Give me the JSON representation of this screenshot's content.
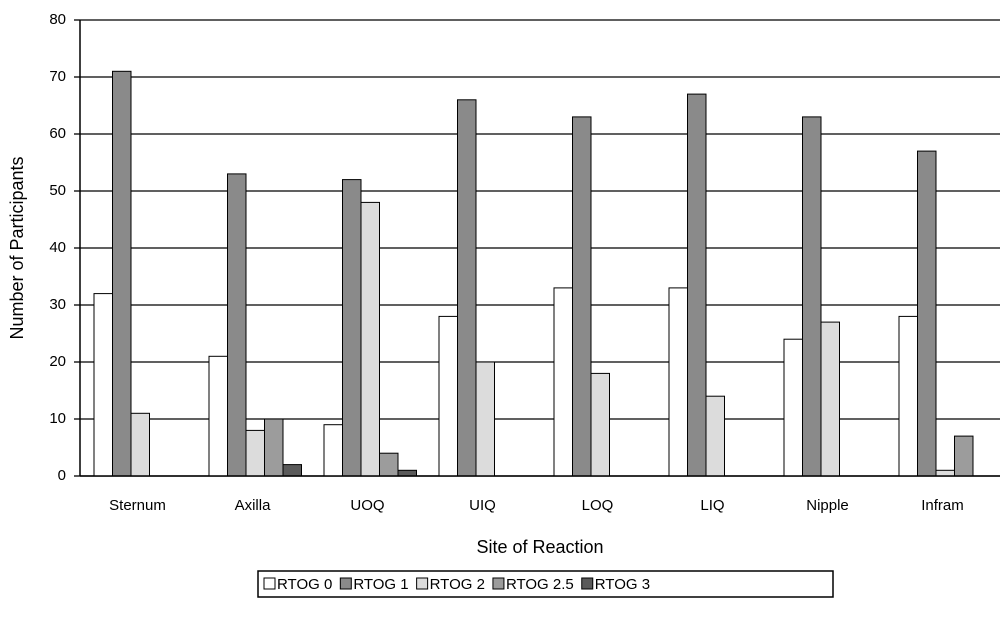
{
  "chart_data": {
    "type": "bar",
    "x_label": "Site of Reaction",
    "y_label": "Number of Participants",
    "categories": [
      "Sternum",
      "Axilla",
      "UOQ",
      "UIQ",
      "LOQ",
      "LIQ",
      "Nipple",
      "Infram"
    ],
    "series": [
      {
        "name": "RTOG 0",
        "color": "#ffffff",
        "values": [
          32,
          21,
          9,
          28,
          33,
          33,
          24,
          28
        ]
      },
      {
        "name": "RTOG 1",
        "color": "#8a8a8a",
        "values": [
          71,
          53,
          52,
          66,
          63,
          67,
          63,
          57
        ]
      },
      {
        "name": "RTOG 2",
        "color": "#dcdcdc",
        "values": [
          11,
          8,
          48,
          20,
          18,
          14,
          27,
          1
        ]
      },
      {
        "name": "RTOG 2.5",
        "color": "#9c9c9c",
        "values": [
          0,
          10,
          4,
          0,
          0,
          0,
          0,
          7
        ]
      },
      {
        "name": "RTOG 3",
        "color": "#5a5a5a",
        "values": [
          0,
          2,
          1,
          0,
          0,
          0,
          0,
          0
        ]
      }
    ],
    "ylim": [
      0,
      80
    ],
    "yticks": [
      0,
      10,
      20,
      30,
      40,
      50,
      60,
      70,
      80
    ],
    "grid": true
  }
}
